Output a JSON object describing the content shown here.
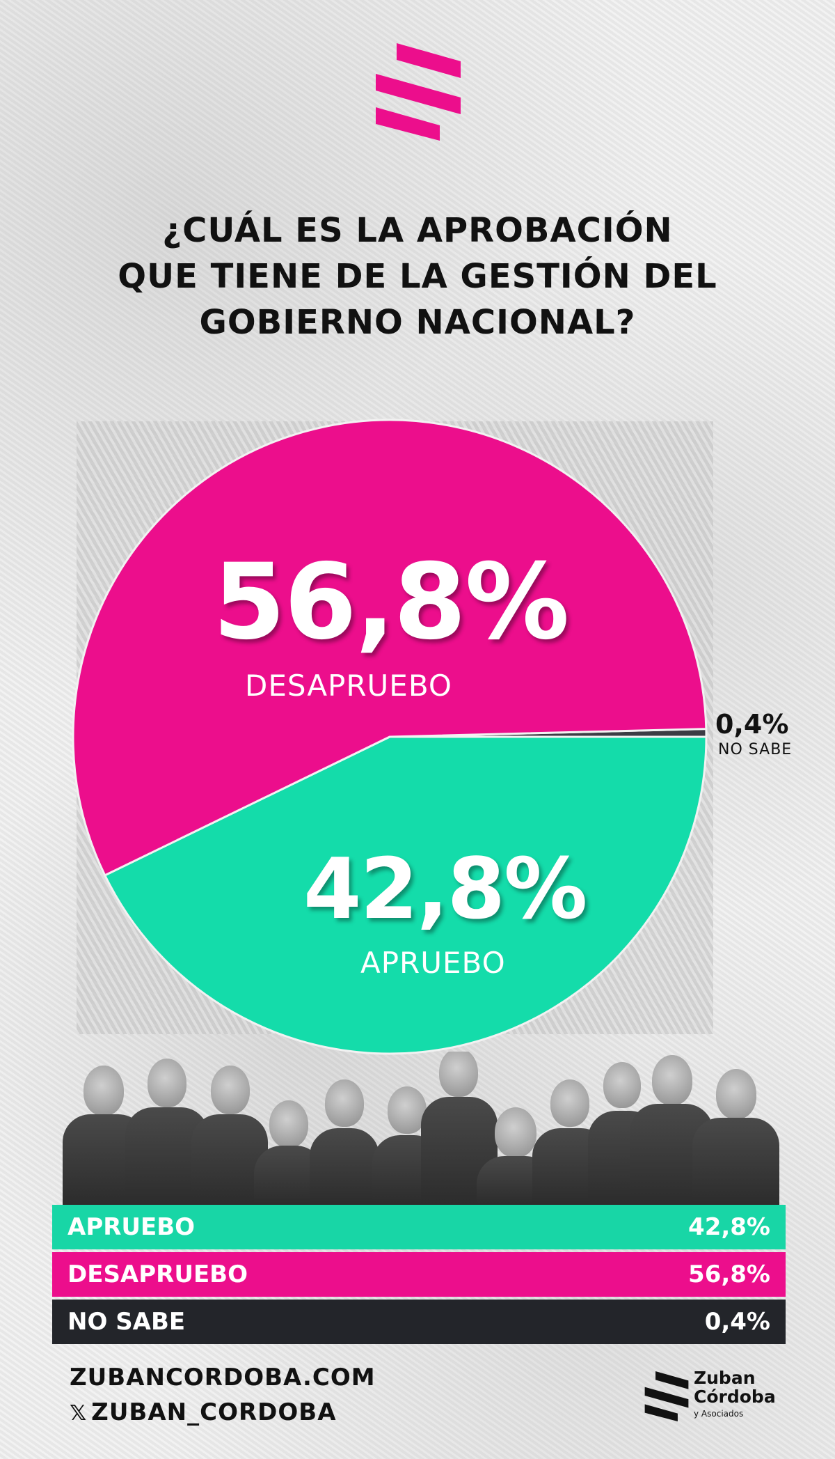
{
  "title": {
    "line1": "¿CUÁL ES LA APROBACIÓN",
    "line2": "QUE TIENE DE LA GESTIÓN DEL",
    "line3": "GOBIERNO NACIONAL?"
  },
  "chart_data": {
    "type": "pie",
    "title": "¿CUÁL ES LA APROBACIÓN QUE TIENE DE LA GESTIÓN DEL GOBIERNO NACIONAL?",
    "categories": [
      "DESAPRUEBO",
      "APRUEBO",
      "NO SABE"
    ],
    "values": [
      56.8,
      42.8,
      0.4
    ],
    "labels": [
      "56,8%",
      "42,8%",
      "0,4%"
    ],
    "colors": [
      "#ec0e8c",
      "#14dcaa",
      "#3c3c44"
    ]
  },
  "table": {
    "rows": [
      {
        "label": "APRUEBO",
        "value": "42,8%",
        "color": "#18d6a6"
      },
      {
        "label": "DESAPRUEBO",
        "value": "56,8%",
        "color": "#ec0e8c"
      },
      {
        "label": "NO SABE",
        "value": "0,4%",
        "color": "#23252a"
      }
    ]
  },
  "footer": {
    "website": "ZUBANCORDOBA.COM",
    "x_handle": "ZUBAN_CORDOBA",
    "x_icon": "𝕏"
  },
  "brand": {
    "name_line1": "Zuban",
    "name_line2": "Córdoba",
    "name_sub": "y Asociados"
  },
  "colors": {
    "brand_pink": "#ec0e8c",
    "brand_green": "#14dcaa"
  }
}
